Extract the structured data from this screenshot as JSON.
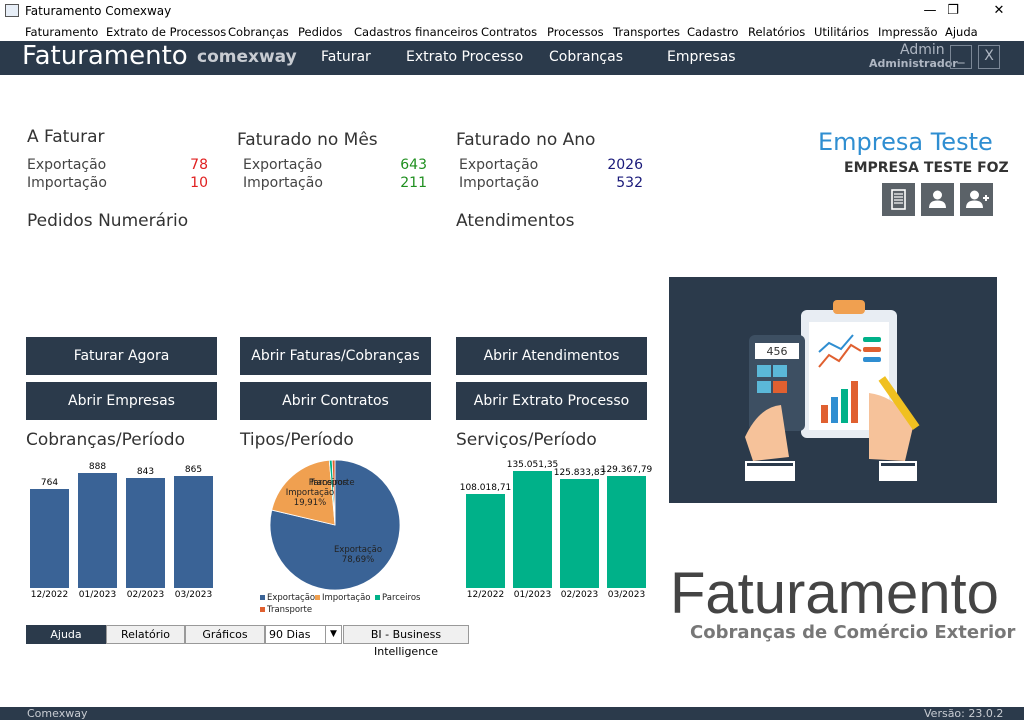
{
  "window": {
    "title": "Faturamento Comexway",
    "min": "—",
    "max": "❐",
    "close": "✕"
  },
  "menu": [
    "Faturamento",
    "Extrato de Processos",
    "Cobranças",
    "Pedidos",
    "Cadastros financeiros",
    "Contratos",
    "Processos",
    "Transportes",
    "Cadastro",
    "Relatórios",
    "Utilitários",
    "Impressão",
    "Ajuda"
  ],
  "nav": {
    "brand": "Faturamento",
    "brand_sub": "comexway",
    "links": [
      "Faturar",
      "Extrato Processo",
      "Cobranças",
      "Empresas"
    ],
    "user_name": "Admin",
    "user_role": "Administrador",
    "minimize": "_",
    "close": "X"
  },
  "stats": {
    "a_faturar": {
      "title": "A Faturar",
      "rows": [
        {
          "label": "Exportação",
          "value": "78"
        },
        {
          "label": "Importação",
          "value": "10"
        }
      ]
    },
    "mes": {
      "title": "Faturado no Mês",
      "rows": [
        {
          "label": "Exportação",
          "value": "643"
        },
        {
          "label": "Importação",
          "value": "211"
        }
      ]
    },
    "ano": {
      "title": "Faturado no Ano",
      "rows": [
        {
          "label": "Exportação",
          "value": "2026"
        },
        {
          "label": "Importação",
          "value": "532"
        }
      ]
    },
    "pedidos": "Pedidos Numerário",
    "atendimentos": "Atendimentos"
  },
  "colors": {
    "a_faturar": "#e02020",
    "mes": "#1f8f1f",
    "ano": "#1a1a7a",
    "nav": "#2b3a4b",
    "bar_blue": "#3a6396",
    "bar_green": "#00b189",
    "pie_orange": "#f0a050"
  },
  "company": {
    "name": "Empresa Teste",
    "sub": "EMPRESA TESTE FOZ"
  },
  "icons": [
    "building-icon",
    "user-icon",
    "add-user-icon"
  ],
  "buttons": [
    "Faturar Agora",
    "Abrir Faturas/Cobranças",
    "Abrir Atendimentos",
    "Abrir Empresas",
    "Abrir Contratos",
    "Abrir Extrato Processo"
  ],
  "chart_data": [
    {
      "type": "bar",
      "title": "Cobranças/Período",
      "categories": [
        "12/2022",
        "01/2023",
        "02/2023",
        "03/2023"
      ],
      "values": [
        764,
        888,
        843,
        865
      ],
      "labels": [
        "764",
        "888",
        "843",
        "865"
      ],
      "ylim": [
        0,
        1000
      ],
      "color": "#3a6396"
    },
    {
      "type": "pie",
      "title": "Tipos/Período",
      "slices": [
        {
          "name": "Exportação",
          "value": 78.69,
          "label": "Exportação\n78,69%",
          "color": "#3a6396"
        },
        {
          "name": "Importação",
          "value": 19.91,
          "label": "Importação\n19,91%",
          "color": "#f0a050"
        },
        {
          "name": "Parceiros",
          "value": 0.7,
          "label": "Parceiros",
          "color": "#00b189"
        },
        {
          "name": "Transporte",
          "value": 0.7,
          "label": "Transporte",
          "color": "#e06030"
        }
      ],
      "legend": [
        "Exportação",
        "Importação",
        "Parceiros",
        "Transporte"
      ]
    },
    {
      "type": "bar",
      "title": "Serviços/Período",
      "categories": [
        "12/2022",
        "01/2023",
        "02/2023",
        "03/2023"
      ],
      "values": [
        108018.71,
        135051.35,
        125833.83,
        129367.79
      ],
      "labels": [
        "108.018,71",
        "135.051,35",
        "125.833,83",
        "129.367,79"
      ],
      "ylim": [
        0,
        150000
      ],
      "color": "#00b189"
    }
  ],
  "tabs": {
    "help": "Ajuda",
    "report": "Relatório",
    "charts": "Gráficos",
    "period": "90 Dias",
    "bi": "BI - Business Intelligence"
  },
  "hero": {
    "title": "Faturamento",
    "subtitle": "Cobranças de Comércio Exterior"
  },
  "footer": {
    "left": "Comexway",
    "right": "Versão: 23.0.2"
  }
}
